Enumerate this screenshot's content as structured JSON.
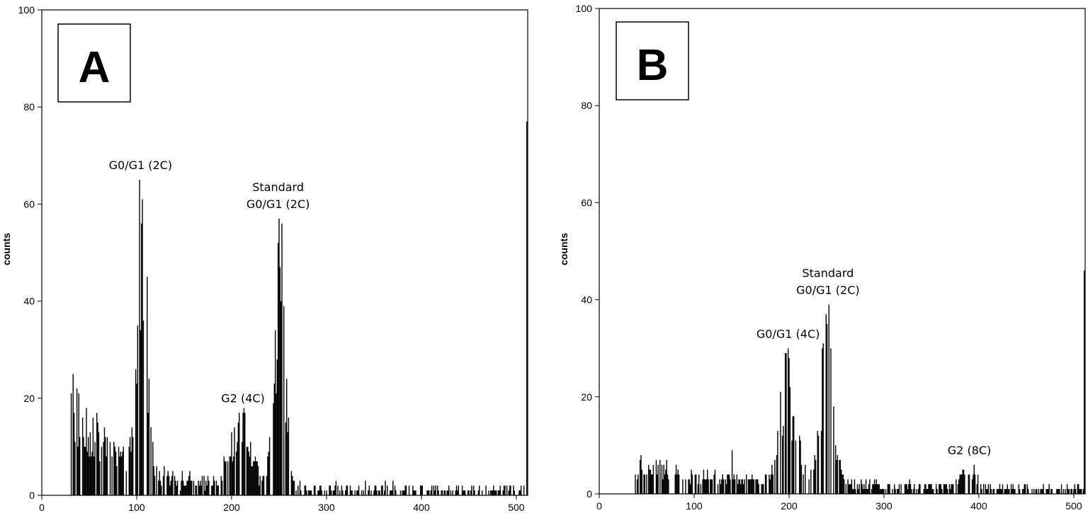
{
  "chart_data": [
    {
      "type": "bar",
      "panel_label": "A",
      "ylabel": "counts",
      "xlabel": "",
      "xlim": [
        0,
        512
      ],
      "ylim": [
        0,
        100
      ],
      "xticks": [
        0,
        100,
        200,
        300,
        400,
        500
      ],
      "yticks": [
        0,
        20,
        40,
        60,
        80,
        100
      ],
      "grid": false,
      "annotations": [
        {
          "lines": [
            "G0/G1 (2C)"
          ],
          "x": 104,
          "y": 66
        },
        {
          "lines": [
            "Standard",
            "G0/G1 (2C)"
          ],
          "x": 249,
          "y": 58
        },
        {
          "lines": [
            "G2 (4C)"
          ],
          "x": 212,
          "y": 18
        }
      ],
      "histogram": {
        "x_start": 31,
        "x_end": 511,
        "noise": 2.5,
        "last_bin_value": 77,
        "components": [
          {
            "label": "debris",
            "shape": "decay",
            "from": 31,
            "amplitude": 17,
            "decay": 55
          },
          {
            "label": "G0/G1 (2C)",
            "center": 106,
            "sigma": 5,
            "height": 45
          },
          {
            "label": "G2 (4C)",
            "center": 210,
            "sigma": 12,
            "height": 11
          },
          {
            "label": "Standard G0/G1 (2C)",
            "center": 251,
            "sigma": 6,
            "height": 40
          }
        ],
        "spikes": [
          [
            33,
            25
          ],
          [
            101,
            35
          ],
          [
            103,
            65
          ],
          [
            105,
            56
          ],
          [
            212,
            17
          ],
          [
            250,
            57
          ],
          [
            251,
            47
          ]
        ]
      }
    },
    {
      "type": "bar",
      "panel_label": "B",
      "ylabel": "counts",
      "xlabel": "",
      "xlim": [
        0,
        512
      ],
      "ylim": [
        0,
        100
      ],
      "xticks": [
        0,
        100,
        200,
        300,
        400,
        500
      ],
      "yticks": [
        0,
        20,
        40,
        60,
        80,
        100
      ],
      "grid": false,
      "annotations": [
        {
          "lines": [
            "G0/G1 (4C)"
          ],
          "x": 199,
          "y": 31
        },
        {
          "lines": [
            "Standard",
            "G0/G1 (2C)"
          ],
          "x": 241,
          "y": 40
        },
        {
          "lines": [
            "G2 (8C)"
          ],
          "x": 390,
          "y": 7
        }
      ],
      "histogram": {
        "x_start": 38,
        "x_end": 511,
        "noise": 1.6,
        "last_bin_value": 46,
        "components": [
          {
            "label": "debris",
            "shape": "decay",
            "from": 38,
            "amplitude": 5,
            "decay": 150
          },
          {
            "label": "G0/G1 (4C)",
            "center": 199,
            "sigma": 8,
            "height": 20
          },
          {
            "label": "Standard G0/G1 (2C)",
            "center": 240,
            "sigma": 7,
            "height": 25
          },
          {
            "label": "G2 (8C)",
            "center": 388,
            "sigma": 9,
            "height": 3
          }
        ],
        "spikes": [
          [
            196,
            29
          ],
          [
            199,
            30
          ],
          [
            236,
            31
          ],
          [
            240,
            35
          ],
          [
            242,
            39
          ],
          [
            140,
            9
          ],
          [
            395,
            6
          ]
        ]
      }
    }
  ]
}
